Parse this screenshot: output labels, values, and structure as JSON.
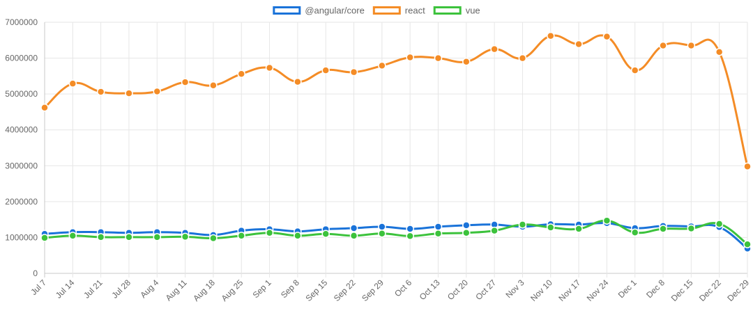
{
  "chart_data": {
    "type": "line",
    "title": "",
    "xlabel": "",
    "ylabel": "",
    "ylim": [
      0,
      7000000
    ],
    "yticks": [
      0,
      1000000,
      2000000,
      3000000,
      4000000,
      5000000,
      6000000,
      7000000
    ],
    "grid": true,
    "legend_position": "top-center",
    "categories": [
      "Jul 7",
      "Jul 14",
      "Jul 21",
      "Jul 28",
      "Aug 4",
      "Aug 11",
      "Aug 18",
      "Aug 25",
      "Sep 1",
      "Sep 8",
      "Sep 15",
      "Sep 22",
      "Sep 29",
      "Oct 6",
      "Oct 13",
      "Oct 20",
      "Oct 27",
      "Nov 3",
      "Nov 10",
      "Nov 17",
      "Nov 24",
      "Dec 1",
      "Dec 8",
      "Dec 15",
      "Dec 22",
      "Dec 29"
    ],
    "series": [
      {
        "name": "@angular/core",
        "color": "#1a73d9",
        "values": [
          1100000,
          1150000,
          1150000,
          1130000,
          1150000,
          1130000,
          1070000,
          1190000,
          1230000,
          1170000,
          1230000,
          1260000,
          1300000,
          1240000,
          1300000,
          1340000,
          1360000,
          1300000,
          1370000,
          1360000,
          1400000,
          1260000,
          1320000,
          1310000,
          1290000,
          690000
        ]
      },
      {
        "name": "react",
        "color": "#f48c26",
        "values": [
          4620000,
          5290000,
          5060000,
          5020000,
          5070000,
          5330000,
          5240000,
          5560000,
          5730000,
          5340000,
          5660000,
          5610000,
          5790000,
          6020000,
          6000000,
          5900000,
          6250000,
          6000000,
          6620000,
          6390000,
          6600000,
          5660000,
          6350000,
          6350000,
          6170000,
          2980000
        ]
      },
      {
        "name": "vue",
        "color": "#3cc23c",
        "values": [
          990000,
          1050000,
          1010000,
          1010000,
          1010000,
          1020000,
          980000,
          1050000,
          1130000,
          1050000,
          1100000,
          1050000,
          1110000,
          1040000,
          1110000,
          1130000,
          1190000,
          1360000,
          1280000,
          1240000,
          1470000,
          1140000,
          1240000,
          1250000,
          1380000,
          810000
        ]
      }
    ]
  }
}
